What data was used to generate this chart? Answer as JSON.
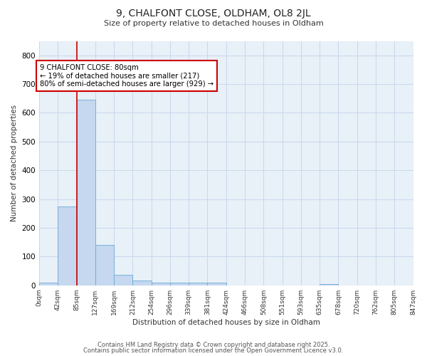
{
  "title1": "9, CHALFONT CLOSE, OLDHAM, OL8 2JL",
  "title2": "Size of property relative to detached houses in Oldham",
  "xlabel": "Distribution of detached houses by size in Oldham",
  "ylabel": "Number of detached properties",
  "bin_labels": [
    "0sqm",
    "42sqm",
    "85sqm",
    "127sqm",
    "169sqm",
    "212sqm",
    "254sqm",
    "296sqm",
    "339sqm",
    "381sqm",
    "424sqm",
    "466sqm",
    "508sqm",
    "551sqm",
    "593sqm",
    "635sqm",
    "678sqm",
    "720sqm",
    "762sqm",
    "805sqm",
    "847sqm"
  ],
  "bar_values": [
    8,
    275,
    645,
    140,
    37,
    16,
    10,
    10,
    10,
    8,
    0,
    0,
    0,
    0,
    0,
    5,
    0,
    0,
    0,
    0
  ],
  "bar_color": "#c5d8ef",
  "bar_edge_color": "#6aaad4",
  "property_line_x": 2,
  "property_line_color": "#cc0000",
  "annotation_line1": "9 CHALFONT CLOSE: 80sqm",
  "annotation_line2": "← 19% of detached houses are smaller (217)",
  "annotation_line3": "80% of semi-detached houses are larger (929) →",
  "annotation_box_facecolor": "#ffffff",
  "annotation_box_edgecolor": "#cc0000",
  "ylim": [
    0,
    850
  ],
  "yticks": [
    0,
    100,
    200,
    300,
    400,
    500,
    600,
    700,
    800
  ],
  "grid_color": "#c8d8ec",
  "plot_bg_color": "#e8f0f8",
  "fig_bg_color": "#ffffff",
  "footnote1": "Contains HM Land Registry data © Crown copyright and database right 2025.",
  "footnote2": "Contains public sector information licensed under the Open Government Licence v3.0."
}
